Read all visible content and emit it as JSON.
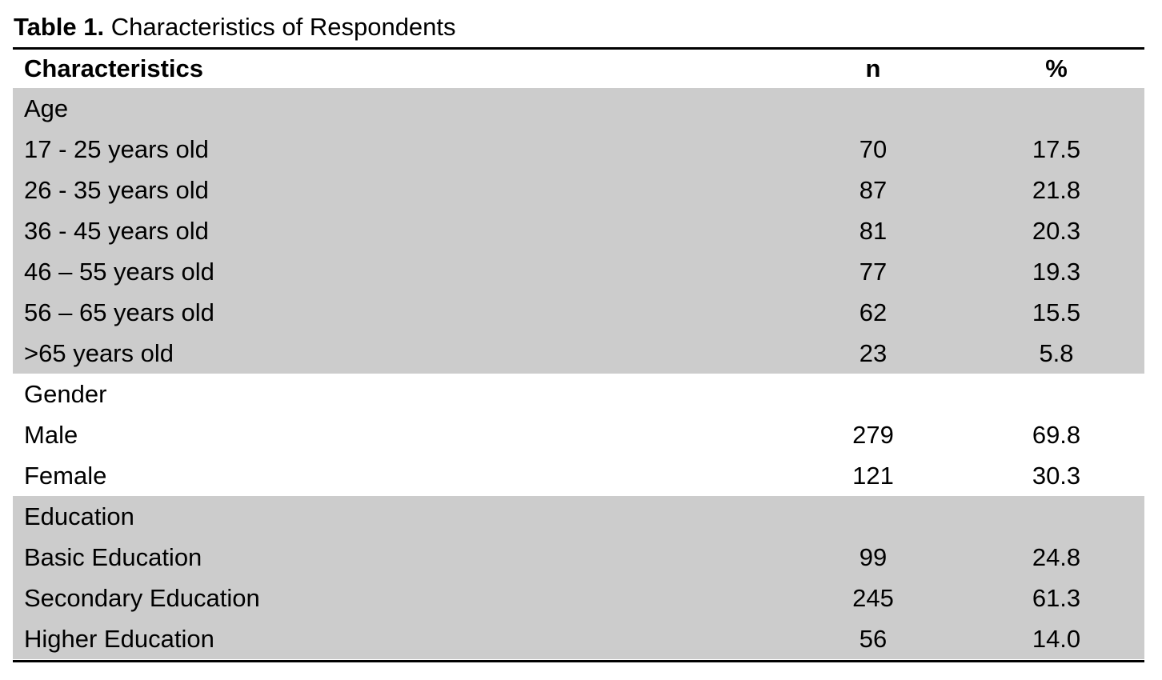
{
  "table": {
    "label": "Table 1.",
    "title": "Characteristics of Respondents",
    "columns": [
      "Characteristics",
      "n",
      "%"
    ],
    "groups": [
      {
        "name": "Age",
        "shaded": true,
        "rows": [
          [
            "17 - 25 years old",
            "70",
            "17.5"
          ],
          [
            "26 - 35 years old",
            "87",
            "21.8"
          ],
          [
            "36 - 45 years old",
            "81",
            "20.3"
          ],
          [
            "46 – 55 years old",
            "77",
            "19.3"
          ],
          [
            "56 – 65 years old",
            "62",
            "15.5"
          ],
          [
            ">65 years old",
            "23",
            "5.8"
          ]
        ]
      },
      {
        "name": "Gender",
        "shaded": false,
        "rows": [
          [
            "Male",
            "279",
            "69.8"
          ],
          [
            "Female",
            "121",
            "30.3"
          ]
        ]
      },
      {
        "name": "Education",
        "shaded": true,
        "rows": [
          [
            "Basic Education",
            "99",
            "24.8"
          ],
          [
            "Secondary Education",
            "245",
            "61.3"
          ],
          [
            "Higher Education",
            "56",
            "14.0"
          ]
        ]
      }
    ]
  }
}
